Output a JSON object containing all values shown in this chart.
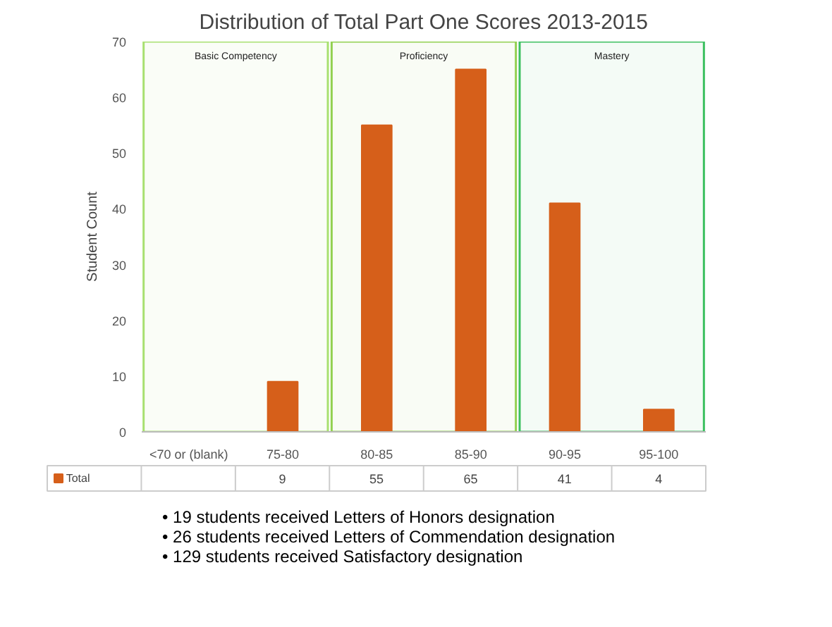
{
  "chart_data": {
    "type": "bar",
    "title": "Distribution of Total Part One Scores 2013-2015",
    "ylabel": "Student Count",
    "categories": [
      "<70 or (blank)",
      "75-80",
      "80-85",
      "85-90",
      "90-95",
      "95-100"
    ],
    "series": [
      {
        "name": "Total",
        "color": "#d65f1a",
        "values": [
          null,
          9,
          55,
          65,
          41,
          4
        ]
      }
    ],
    "value_labels": [
      null,
      "9",
      "55",
      "65",
      "41",
      "4"
    ],
    "ylim": [
      0,
      70
    ],
    "yticks": [
      0,
      10,
      20,
      30,
      40,
      50,
      60,
      70
    ],
    "grid": false,
    "legend": "bottom left",
    "bands": [
      {
        "axis": "x",
        "from": "<70 or (blank)",
        "to": "75-80",
        "label": "Basic Competency",
        "color": "#a8e070"
      },
      {
        "axis": "x",
        "from": "80-85",
        "to": "85-90",
        "label": "Proficiency",
        "color": "#92d050"
      },
      {
        "axis": "x",
        "from": "90-95",
        "to": "95-100",
        "label": "Mastery",
        "color": "#3cc060"
      }
    ],
    "annotations": [
      "•  19 students received Letters of Honors designation",
      "•  26 students received Letters of Commendation designation",
      "•  129 students received Satisfactory designation"
    ]
  }
}
